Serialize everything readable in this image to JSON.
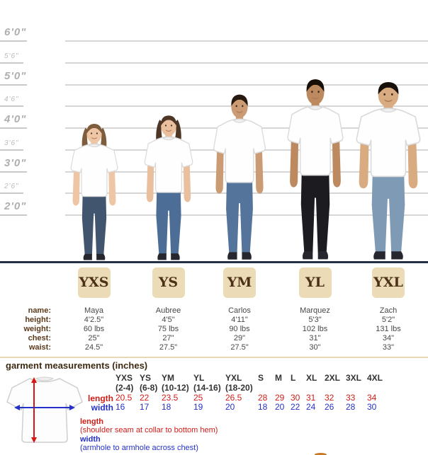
{
  "ruler": {
    "marks": [
      {
        "label": "6'0\"",
        "major": true
      },
      {
        "label": "5'6\"",
        "major": false
      },
      {
        "label": "5'0\"",
        "major": true
      },
      {
        "label": "4'6\"",
        "major": false
      },
      {
        "label": "4'0\"",
        "major": true
      },
      {
        "label": "3'6\"",
        "major": false
      },
      {
        "label": "3'0\"",
        "major": true
      },
      {
        "label": "2'6\"",
        "major": false
      },
      {
        "label": "2'0\"",
        "major": true
      }
    ]
  },
  "models": {
    "row_labels": [
      "name:",
      "height:",
      "weight:",
      "chest:",
      "waist:"
    ],
    "children": [
      {
        "size": "YXS",
        "name": "Maya",
        "height": "4'2.5\"",
        "weight": "60 lbs",
        "chest": "25\"",
        "waist": "24.5\"",
        "figure": {
          "skin": "#eec6a6",
          "hair": "#7d5d3c",
          "pants": "#41566e",
          "long_hair": true
        }
      },
      {
        "size": "YS",
        "name": "Aubree",
        "height": "4'5\"",
        "weight": "75 lbs",
        "chest": "27\"",
        "waist": "27.5\"",
        "figure": {
          "skin": "#eabf9e",
          "hair": "#4e3627",
          "pants": "#4b6d96",
          "long_hair": true
        }
      },
      {
        "size": "YM",
        "name": "Carlos",
        "height": "4'11\"",
        "weight": "90 lbs",
        "chest": "29\"",
        "waist": "27.5\"",
        "figure": {
          "skin": "#cb9c74",
          "hair": "#26190f",
          "pants": "#54749c",
          "long_hair": false
        }
      },
      {
        "size": "YL",
        "name": "Marquez",
        "height": "5'3\"",
        "weight": "102 lbs",
        "chest": "31\"",
        "waist": "30\"",
        "figure": {
          "skin": "#bd8a60",
          "hair": "#170f08",
          "pants": "#1b1b20",
          "long_hair": false
        }
      },
      {
        "size": "YXL",
        "name": "Zach",
        "height": "5'2\"",
        "weight": "131 lbs",
        "chest": "34\"",
        "waist": "33\"",
        "figure": {
          "skin": "#d9ab80",
          "hair": "#17100a",
          "pants": "#7f9ab4",
          "long_hair": false
        }
      }
    ]
  },
  "garment": {
    "heading": "garment measurements (inches)",
    "rows": {
      "length_label": "length",
      "width_label": "width"
    },
    "columns": [
      {
        "size": "YXS",
        "range": "(2-4)",
        "length": "20.5",
        "width": "16"
      },
      {
        "size": "YS",
        "range": "(6-8)",
        "length": "22",
        "width": "17"
      },
      {
        "size": "YM",
        "range": "(10-12)",
        "length": "23.5",
        "width": "18"
      },
      {
        "size": "YL",
        "range": "(14-16)",
        "length": "25",
        "width": "19"
      },
      {
        "size": "YXL",
        "range": "(18-20)",
        "length": "26.5",
        "width": "20"
      },
      {
        "size": "S",
        "range": "",
        "length": "28",
        "width": "18"
      },
      {
        "size": "M",
        "range": "",
        "length": "29",
        "width": "20"
      },
      {
        "size": "L",
        "range": "",
        "length": "30",
        "width": "22"
      },
      {
        "size": "XL",
        "range": "",
        "length": "31",
        "width": "24"
      },
      {
        "size": "2XL",
        "range": "",
        "length": "32",
        "width": "26"
      },
      {
        "size": "3XL",
        "range": "",
        "length": "33",
        "width": "28"
      },
      {
        "size": "4XL",
        "range": "",
        "length": "34",
        "width": "30"
      }
    ],
    "legend": {
      "length_term": "length",
      "length_def": "(shoulder seam at collar to bottom hem)",
      "width_term": "width",
      "width_def": "(armhole to armhole across chest)"
    }
  },
  "colors": {
    "badge_bg": "#ebdbb7",
    "badge_text": "#4c3118",
    "accent_red": "#cf1d17",
    "accent_blue": "#2431c8",
    "divider_tan": "#e8d8b4",
    "baseline_navy": "#242e44",
    "label_brown": "#5c3b1d",
    "heading_brown": "#3e2a12"
  }
}
